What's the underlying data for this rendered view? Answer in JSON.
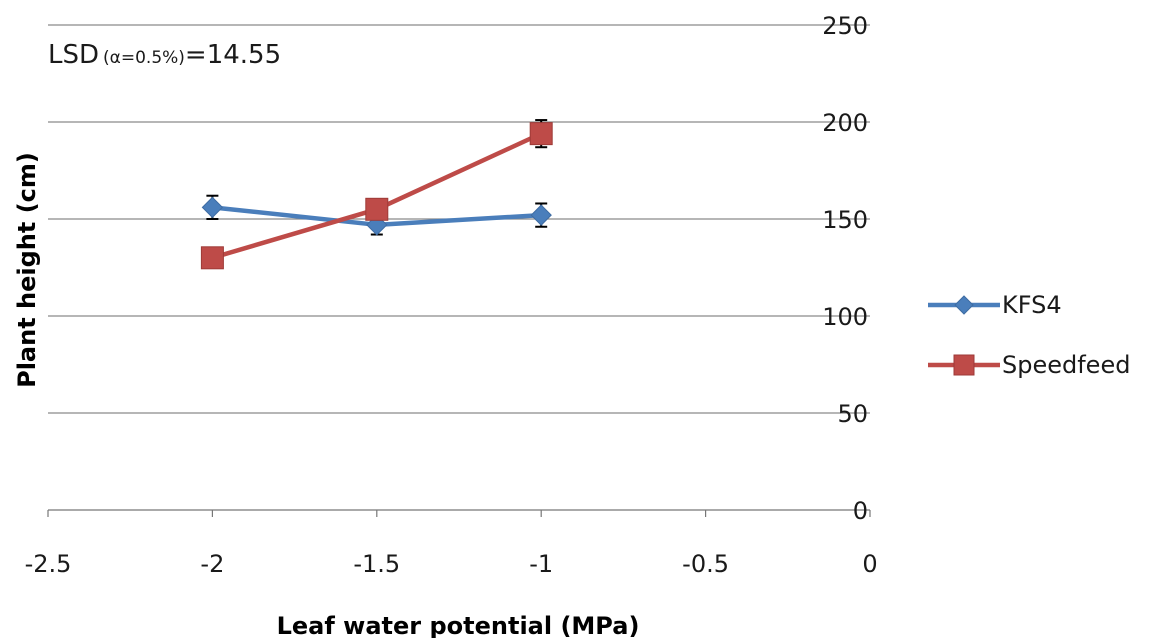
{
  "chart_data": {
    "type": "line",
    "xlabel": "Leaf water potential (MPa)",
    "ylabel": "Plant height (cm)",
    "xlim": [
      -2.5,
      0
    ],
    "ylim": [
      0,
      250
    ],
    "x_ticks": [
      "-2.5",
      "-2",
      "-1.5",
      "-1",
      "-0.5",
      "0"
    ],
    "y_ticks": [
      "0",
      "50",
      "100",
      "150",
      "200",
      "250"
    ],
    "grid": "horizontal",
    "y_axis_position": "right",
    "legend_position": "right",
    "annotation": {
      "prefix": "LSD",
      "sub": "(α=0.5%)",
      "suffix": "=14.55"
    },
    "series": [
      {
        "name": "KFS4",
        "color": "#4a7ebb",
        "marker": "diamond",
        "x": [
          -2,
          -1.5,
          -1
        ],
        "y": [
          156,
          147,
          152
        ],
        "error": [
          6,
          5,
          6
        ]
      },
      {
        "name": "Speedfeed",
        "color": "#be4b48",
        "marker": "square",
        "x": [
          -2,
          -1.5,
          -1
        ],
        "y": [
          130,
          155,
          194
        ],
        "error": [
          0,
          5,
          7
        ]
      }
    ]
  }
}
